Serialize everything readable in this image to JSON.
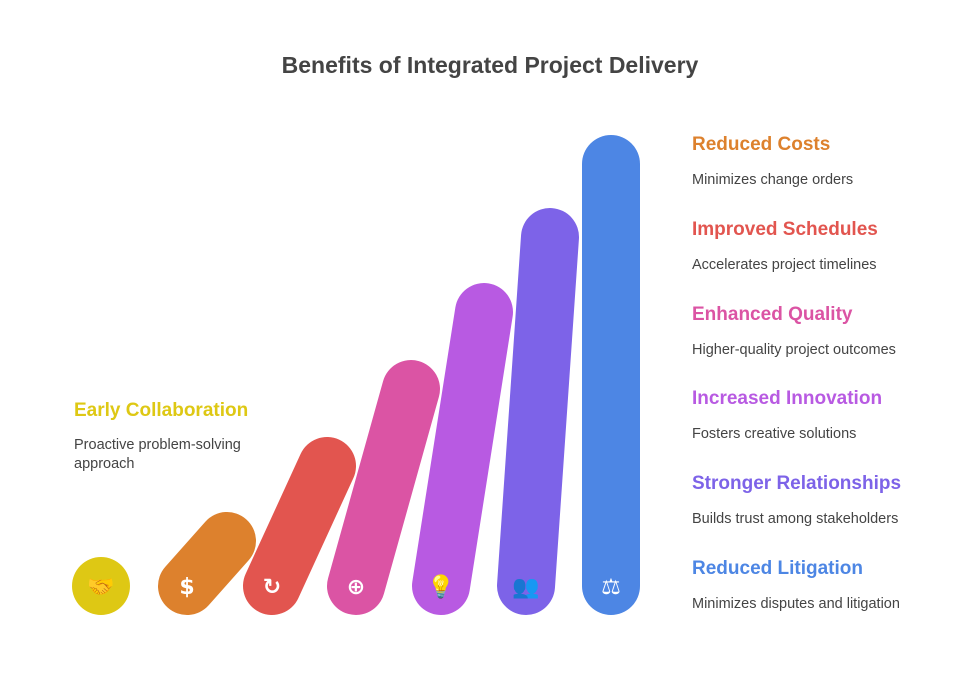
{
  "title": "Benefits of Integrated Project Delivery",
  "items": [
    {
      "title": "Early Collaboration",
      "desc": "Proactive problem-solving approach",
      "color": "#DEC814",
      "icon": "handshake-icon"
    },
    {
      "title": "Reduced Costs",
      "desc": "Minimizes change orders",
      "color": "#DD812D",
      "icon": "money-bag-icon"
    },
    {
      "title": "Improved Schedules",
      "desc": "Accelerates project timelines",
      "color": "#E2554F",
      "icon": "calendar-refresh-icon"
    },
    {
      "title": "Enhanced Quality",
      "desc": "Higher-quality project outcomes",
      "color": "#DB54A4",
      "icon": "zoom-in-icon"
    },
    {
      "title": "Increased Innovation",
      "desc": "Fosters creative solutions",
      "color": "#B85AE2",
      "icon": "lightbulb-icon"
    },
    {
      "title": "Stronger Relationships",
      "desc": "Builds trust among stakeholders",
      "color": "#7D63E8",
      "icon": "people-puzzle-icon"
    },
    {
      "title": "Reduced Litigation",
      "desc": "Minimizes disputes and litigation",
      "color": "#4D86E4",
      "icon": "scales-icon"
    }
  ]
}
